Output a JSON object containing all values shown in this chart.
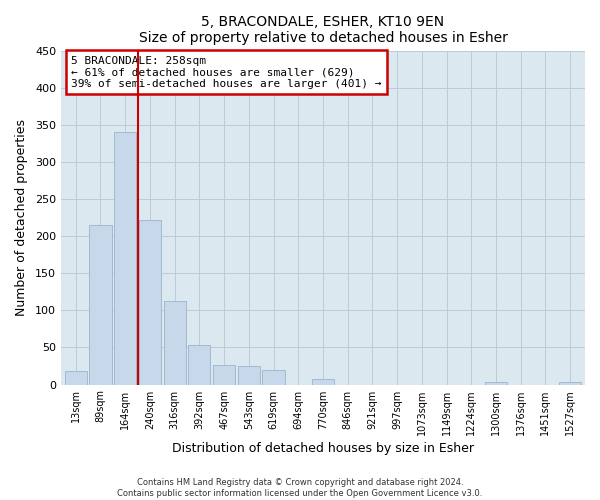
{
  "title": "5, BRACONDALE, ESHER, KT10 9EN",
  "subtitle": "Size of property relative to detached houses in Esher",
  "xlabel": "Distribution of detached houses by size in Esher",
  "ylabel": "Number of detached properties",
  "bin_labels": [
    "13sqm",
    "89sqm",
    "164sqm",
    "240sqm",
    "316sqm",
    "392sqm",
    "467sqm",
    "543sqm",
    "619sqm",
    "694sqm",
    "770sqm",
    "846sqm",
    "921sqm",
    "997sqm",
    "1073sqm",
    "1149sqm",
    "1224sqm",
    "1300sqm",
    "1376sqm",
    "1451sqm",
    "1527sqm"
  ],
  "bar_values": [
    18,
    215,
    340,
    222,
    113,
    53,
    26,
    25,
    20,
    0,
    7,
    0,
    0,
    0,
    0,
    0,
    0,
    3,
    0,
    0,
    3
  ],
  "bar_color": "#c6d8ea",
  "bar_edgecolor": "#9ab5cc",
  "vline_color": "#cc0000",
  "ylim": [
    0,
    450
  ],
  "yticks": [
    0,
    50,
    100,
    150,
    200,
    250,
    300,
    350,
    400,
    450
  ],
  "annotation_title": "5 BRACONDALE: 258sqm",
  "annotation_line1": "← 61% of detached houses are smaller (629)",
  "annotation_line2": "39% of semi-detached houses are larger (401) →",
  "annotation_box_color": "#cc0000",
  "footer_line1": "Contains HM Land Registry data © Crown copyright and database right 2024.",
  "footer_line2": "Contains public sector information licensed under the Open Government Licence v3.0.",
  "plot_bg_color": "#dce8f0",
  "fig_bg_color": "#ffffff",
  "grid_color": "#b8ccd8"
}
